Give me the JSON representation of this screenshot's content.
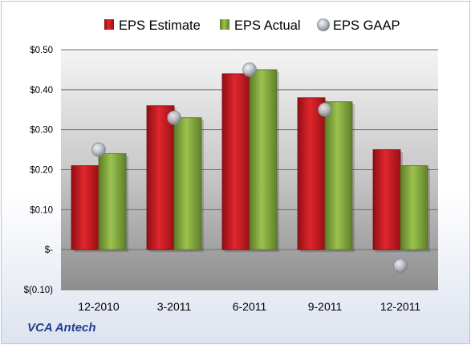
{
  "company": "VCA Antech",
  "chart_data": {
    "type": "bar",
    "categories": [
      "12-2010",
      "3-2011",
      "6-2011",
      "9-2011",
      "12-2011"
    ],
    "series": [
      {
        "name": "EPS Estimate",
        "kind": "bar",
        "color": "#c8161d",
        "values": [
          0.21,
          0.36,
          0.44,
          0.38,
          0.25
        ]
      },
      {
        "name": "EPS Actual",
        "kind": "bar",
        "color": "#7ea33a",
        "values": [
          0.24,
          0.33,
          0.45,
          0.37,
          0.21
        ]
      },
      {
        "name": "EPS GAAP",
        "kind": "marker",
        "color": "#b8bcc4",
        "values": [
          0.25,
          0.33,
          0.45,
          0.35,
          -0.04
        ]
      }
    ],
    "y_ticks": [
      {
        "value": 0.5,
        "label": "$0.50"
      },
      {
        "value": 0.4,
        "label": "$0.40"
      },
      {
        "value": 0.3,
        "label": "$0.30"
      },
      {
        "value": 0.2,
        "label": "$0.20"
      },
      {
        "value": 0.1,
        "label": "$0.10"
      },
      {
        "value": 0,
        "label": "$-"
      },
      {
        "value": -0.1,
        "label": "$(0.10)"
      }
    ],
    "ylim": [
      -0.1,
      0.5
    ],
    "grid": true,
    "legend_position": "top"
  }
}
